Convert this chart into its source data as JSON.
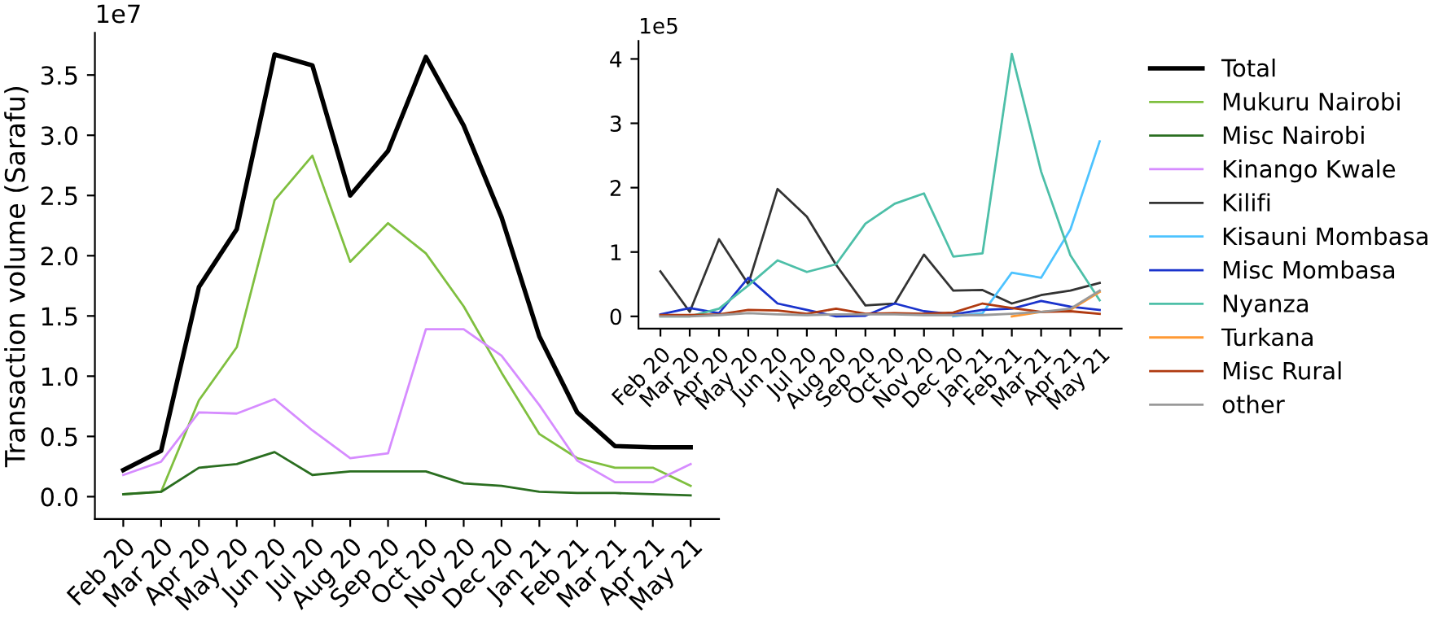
{
  "chart_data": [
    {
      "type": "line",
      "ylabel": "Transaction volume (Sarafu)",
      "annotations": [
        "1e7"
      ],
      "legend": "right",
      "grid": false,
      "categories": [
        "Feb 20",
        "Mar 20",
        "Apr 20",
        "May 20",
        "Jun 20",
        "Jul 20",
        "Aug 20",
        "Sep 20",
        "Oct 20",
        "Nov 20",
        "Dec 20",
        "Jan 21",
        "Feb 21",
        "Mar 21",
        "Apr 21",
        "May 21"
      ],
      "ylim": [
        -0.185,
        3.85
      ],
      "yticks": [
        {
          "value": 0,
          "label": "0.0"
        },
        0.5,
        {
          "value": 1,
          "label": "1.0"
        },
        1.5,
        {
          "value": 2,
          "label": "2.0"
        },
        2.5,
        {
          "value": 3,
          "label": "3.0"
        },
        3.5
      ],
      "series": [
        {
          "name": "Total",
          "color": "#000000",
          "values": [
            0.22,
            0.38,
            1.74,
            2.22,
            3.67,
            3.58,
            2.5,
            2.87,
            3.65,
            3.08,
            2.32,
            1.33,
            0.7,
            0.42,
            0.41,
            0.41
          ]
        },
        {
          "name": "Mukuru Nairobi",
          "color": "#7fbf3f",
          "values": [
            0.02,
            0.04,
            0.8,
            1.24,
            2.46,
            2.83,
            1.95,
            2.27,
            2.02,
            1.58,
            1.03,
            0.52,
            0.32,
            0.24,
            0.24,
            0.09
          ]
        },
        {
          "name": "Misc Nairobi",
          "color": "#2a6e20",
          "values": [
            0.02,
            0.04,
            0.24,
            0.27,
            0.37,
            0.18,
            0.21,
            0.21,
            0.21,
            0.11,
            0.09,
            0.04,
            0.03,
            0.03,
            0.02,
            0.01
          ]
        },
        {
          "name": "Kinango Kwale",
          "color": "#d68cff",
          "values": [
            0.18,
            0.29,
            0.7,
            0.69,
            0.81,
            0.55,
            0.32,
            0.36,
            1.39,
            1.39,
            1.17,
            0.76,
            0.3,
            0.12,
            0.12,
            0.27
          ]
        }
      ]
    },
    {
      "type": "line",
      "annotations": [
        "1e5"
      ],
      "grid": false,
      "legend": "right",
      "categories": [
        "Feb 20",
        "Mar 20",
        "Apr 20",
        "May 20",
        "Jun 20",
        "Jul 20",
        "Aug 20",
        "Sep 20",
        "Oct 20",
        "Nov 20",
        "Dec 20",
        "Jan 21",
        "Feb 21",
        "Mar 21",
        "Apr 21",
        "May 21"
      ],
      "ylim": [
        -0.19,
        4.28
      ],
      "yticks": [
        0,
        1,
        2,
        3,
        4
      ],
      "series": [
        {
          "name": "Kilifi",
          "color": "#333333",
          "values": [
            0.7,
            0.07,
            1.2,
            0.5,
            1.98,
            1.55,
            0.8,
            0.17,
            0.2,
            0.96,
            0.4,
            0.41,
            0.2,
            0.33,
            0.4,
            0.52
          ]
        },
        {
          "name": "Kisauni Mombasa",
          "color": "#4dc3ff",
          "values": [
            null,
            null,
            null,
            null,
            null,
            null,
            null,
            null,
            null,
            null,
            0,
            0.05,
            0.68,
            0.6,
            1.35,
            2.72
          ]
        },
        {
          "name": "Misc Mombasa",
          "color": "#1a33cc",
          "values": [
            0.03,
            0.13,
            0.05,
            0.6,
            0.2,
            0.1,
            0,
            0.01,
            0.2,
            0.08,
            0.03,
            0.1,
            0.12,
            0.24,
            0.15,
            0.1
          ]
        },
        {
          "name": "Nyanza",
          "color": "#4dbfa8",
          "values": [
            0,
            0,
            0.12,
            0.48,
            0.87,
            0.69,
            0.81,
            1.44,
            1.75,
            1.91,
            0.93,
            0.98,
            4.08,
            2.25,
            0.95,
            0.25
          ]
        },
        {
          "name": "Turkana",
          "color": "#ff9933",
          "values": [
            null,
            null,
            null,
            null,
            null,
            null,
            null,
            null,
            null,
            null,
            null,
            null,
            0,
            0.07,
            0.1,
            0.38
          ]
        },
        {
          "name": "Misc Rural",
          "color": "#b03a10",
          "values": [
            0.02,
            0.02,
            0.03,
            0.1,
            0.09,
            0.04,
            0.12,
            0.04,
            0.05,
            0.04,
            0.06,
            0.2,
            0.13,
            0.07,
            0.08,
            0.04
          ]
        },
        {
          "name": "other",
          "color": "#999999",
          "values": [
            0,
            0,
            0.02,
            0.05,
            0.03,
            0.02,
            0.03,
            0.03,
            0.03,
            0.02,
            0.02,
            0.02,
            0.04,
            0.07,
            0.12,
            0.4
          ]
        }
      ]
    }
  ]
}
